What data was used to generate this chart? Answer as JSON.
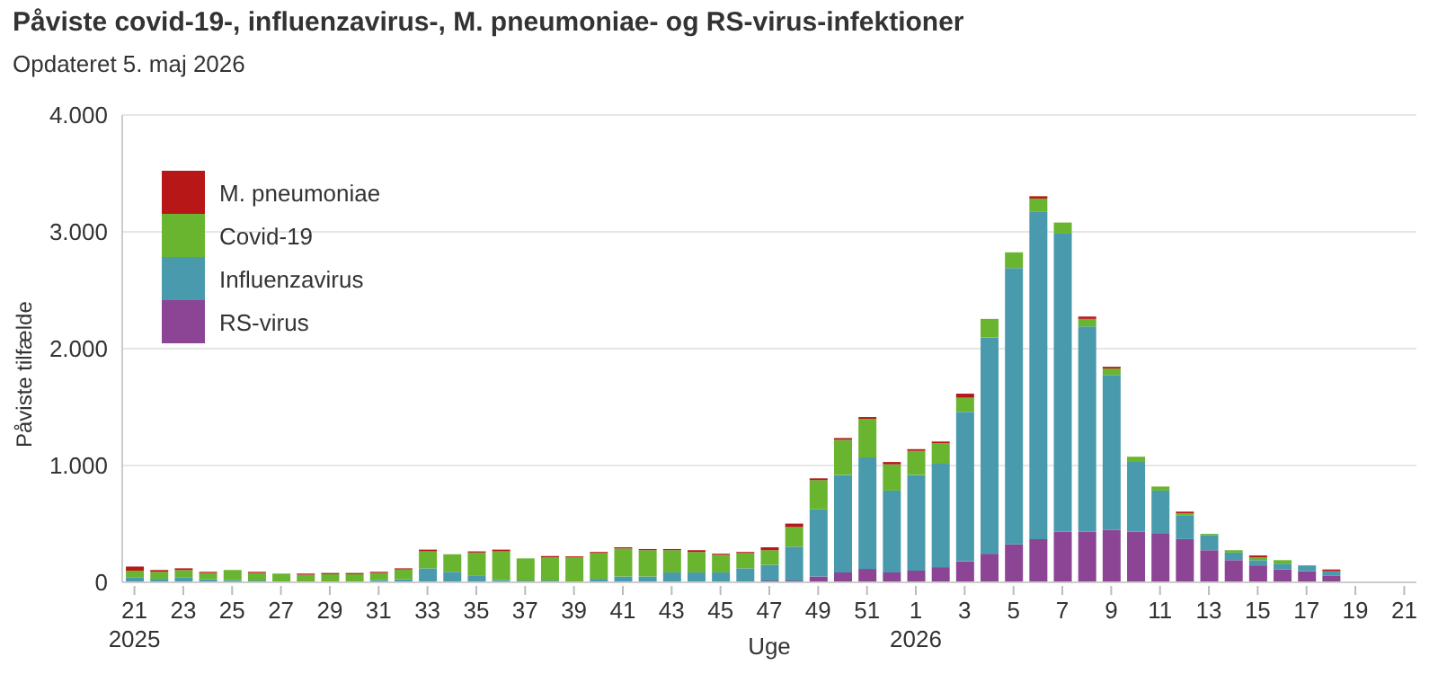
{
  "chart_data": {
    "type": "bar",
    "title": "Påviste covid-19-, influenzavirus-, M. pneumoniae- og RS-virus-infektioner",
    "subtitle": "Opdateret 5. maj 2026",
    "xlabel": "Uge",
    "ylabel": "Påviste tilfælde",
    "categories": [
      "21\n2025",
      null,
      "23",
      null,
      "25",
      null,
      "27",
      null,
      "29",
      null,
      "31",
      null,
      "33",
      null,
      "35",
      null,
      "37",
      null,
      "39",
      null,
      "41",
      null,
      "43",
      null,
      "45",
      null,
      "47",
      null,
      "49",
      null,
      "51",
      null,
      "1\n2026",
      null,
      "3",
      null,
      "5",
      null,
      "7",
      null,
      "9",
      null,
      "11",
      null,
      "13",
      null,
      "15",
      null,
      "17",
      null,
      "19",
      null,
      "21"
    ],
    "series": [
      {
        "name": "RS-virus",
        "color": "#8b4594",
        "values": [
          0,
          0,
          0,
          0,
          0,
          0,
          0,
          0,
          0,
          0,
          0,
          0,
          0,
          0,
          0,
          0,
          0,
          0,
          0,
          0,
          0,
          0,
          0,
          0,
          0,
          5,
          15,
          15,
          50,
          85,
          115,
          85,
          100,
          130,
          180,
          245,
          325,
          370,
          435,
          435,
          450,
          435,
          415,
          370,
          275,
          190,
          145,
          110,
          95,
          55,
          null,
          null,
          null
        ]
      },
      {
        "name": "Influenzavirus",
        "color": "#4a9aad",
        "values": [
          40,
          30,
          40,
          25,
          20,
          15,
          5,
          5,
          0,
          0,
          20,
          25,
          120,
          90,
          60,
          20,
          15,
          15,
          0,
          30,
          50,
          50,
          85,
          85,
          85,
          115,
          135,
          290,
          575,
          835,
          955,
          700,
          820,
          885,
          1280,
          1850,
          2365,
          2805,
          2550,
          1755,
          1325,
          595,
          370,
          205,
          130,
          65,
          45,
          50,
          50,
          40,
          null,
          null,
          null
        ]
      },
      {
        "name": "Covid-19",
        "color": "#6ab530",
        "values": [
          60,
          60,
          65,
          55,
          85,
          65,
          70,
          60,
          70,
          70,
          60,
          85,
          145,
          150,
          195,
          245,
          190,
          200,
          212,
          220,
          240,
          225,
          190,
          175,
          150,
          130,
          125,
          168,
          250,
          300,
          330,
          225,
          205,
          175,
          120,
          160,
          135,
          110,
          95,
          65,
          55,
          45,
          35,
          15,
          10,
          20,
          25,
          30,
          0,
          0,
          null,
          null,
          null
        ]
      },
      {
        "name": "M. pneumoniae",
        "color": "#b81717",
        "values": [
          35,
          15,
          15,
          10,
          0,
          10,
          0,
          10,
          10,
          10,
          10,
          10,
          15,
          0,
          10,
          15,
          0,
          10,
          10,
          10,
          10,
          10,
          10,
          15,
          10,
          10,
          25,
          30,
          15,
          15,
          15,
          20,
          15,
          15,
          35,
          0,
          0,
          20,
          0,
          20,
          15,
          0,
          0,
          15,
          0,
          0,
          15,
          0,
          0,
          15,
          null,
          null,
          null
        ]
      }
    ],
    "stacked": true,
    "ylim": [
      0,
      4000
    ],
    "yticks": [
      0,
      {
        "value": 1000,
        "label": "1.000"
      },
      {
        "value": 2000,
        "label": "2.000"
      },
      {
        "value": 3000,
        "label": "3.000"
      },
      {
        "value": 4000,
        "label": "4.000"
      }
    ],
    "grid": "y",
    "legend": "top left"
  }
}
